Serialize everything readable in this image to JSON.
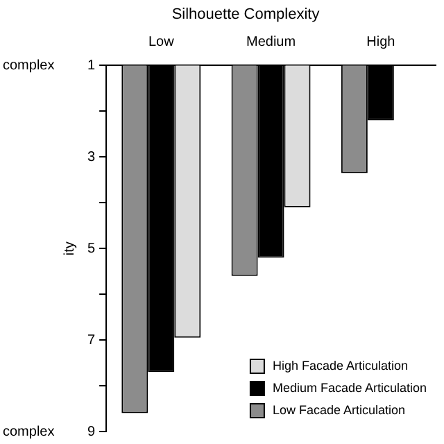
{
  "chart_data": {
    "type": "bar",
    "title": "Silhouette Complexity",
    "ylabel": "ity",
    "categories": [
      "Low",
      "Medium",
      "High"
    ],
    "series": [
      {
        "name": "Low Facade Articulation",
        "color": "#8c8c8c",
        "values": [
          8.6,
          5.6,
          3.35
        ]
      },
      {
        "name": "Medium Facade Articulation",
        "color": "#000000",
        "values": [
          7.7,
          5.2,
          2.2
        ]
      },
      {
        "name": "High Facade Articulation",
        "color": "#dcdcdc",
        "values": [
          6.95,
          4.1,
          null
        ]
      }
    ],
    "ylim": [
      9,
      1
    ],
    "yticks": [
      1,
      {
        "value": 2,
        "label": null
      },
      3,
      {
        "value": 4,
        "label": null
      },
      5,
      {
        "value": 6,
        "label": null
      },
      7,
      {
        "value": 8,
        "label": null
      },
      9
    ],
    "annotations": [
      "complex",
      "complex"
    ],
    "grid": false,
    "legend": "bottom right"
  }
}
